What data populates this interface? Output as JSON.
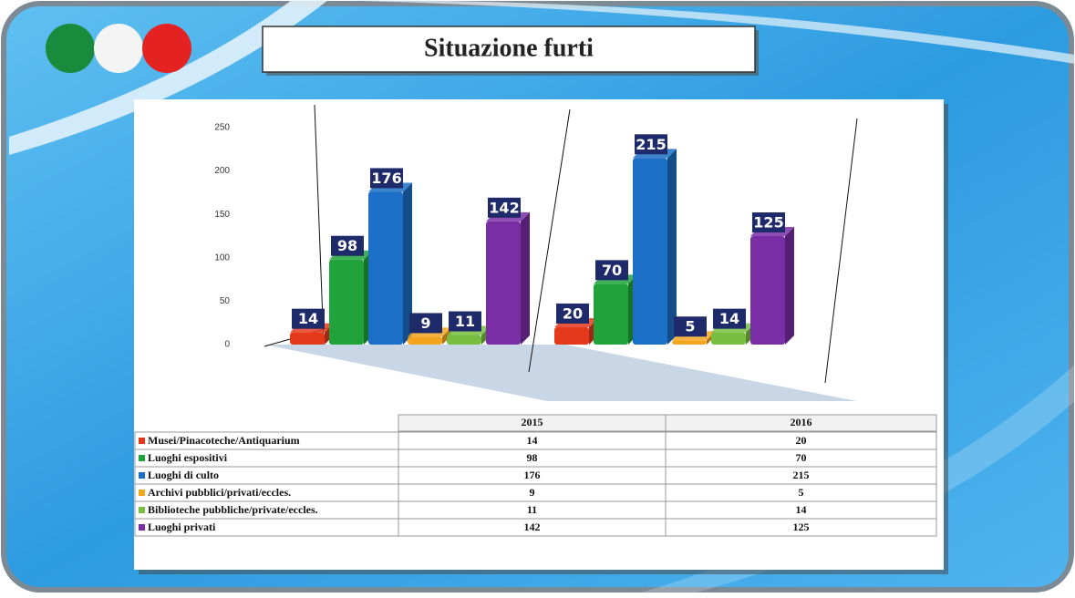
{
  "chart_data": {
    "type": "bar",
    "title": "Situazione furti",
    "categories": [
      "2015",
      "2016"
    ],
    "series": [
      {
        "name": "Musei/Pinacoteche/Antiquarium",
        "color": "#e5391c",
        "values": [
          14,
          20
        ]
      },
      {
        "name": "Luoghi espositivi",
        "color": "#1fa33a",
        "values": [
          98,
          70
        ]
      },
      {
        "name": "Luoghi di culto",
        "color": "#1b6fc6",
        "values": [
          176,
          215
        ]
      },
      {
        "name": "Archivi pubblici/privati/eccles.",
        "color": "#f4a51f",
        "values": [
          9,
          5
        ]
      },
      {
        "name": "Biblioteche pubbliche/private/eccles.",
        "color": "#78bf41",
        "values": [
          11,
          14
        ]
      },
      {
        "name": "Luoghi privati",
        "color": "#7a2ea6",
        "values": [
          142,
          125
        ]
      }
    ],
    "ylim": [
      0,
      250
    ],
    "yticks": [
      0,
      50,
      100,
      150,
      200,
      250
    ]
  }
}
